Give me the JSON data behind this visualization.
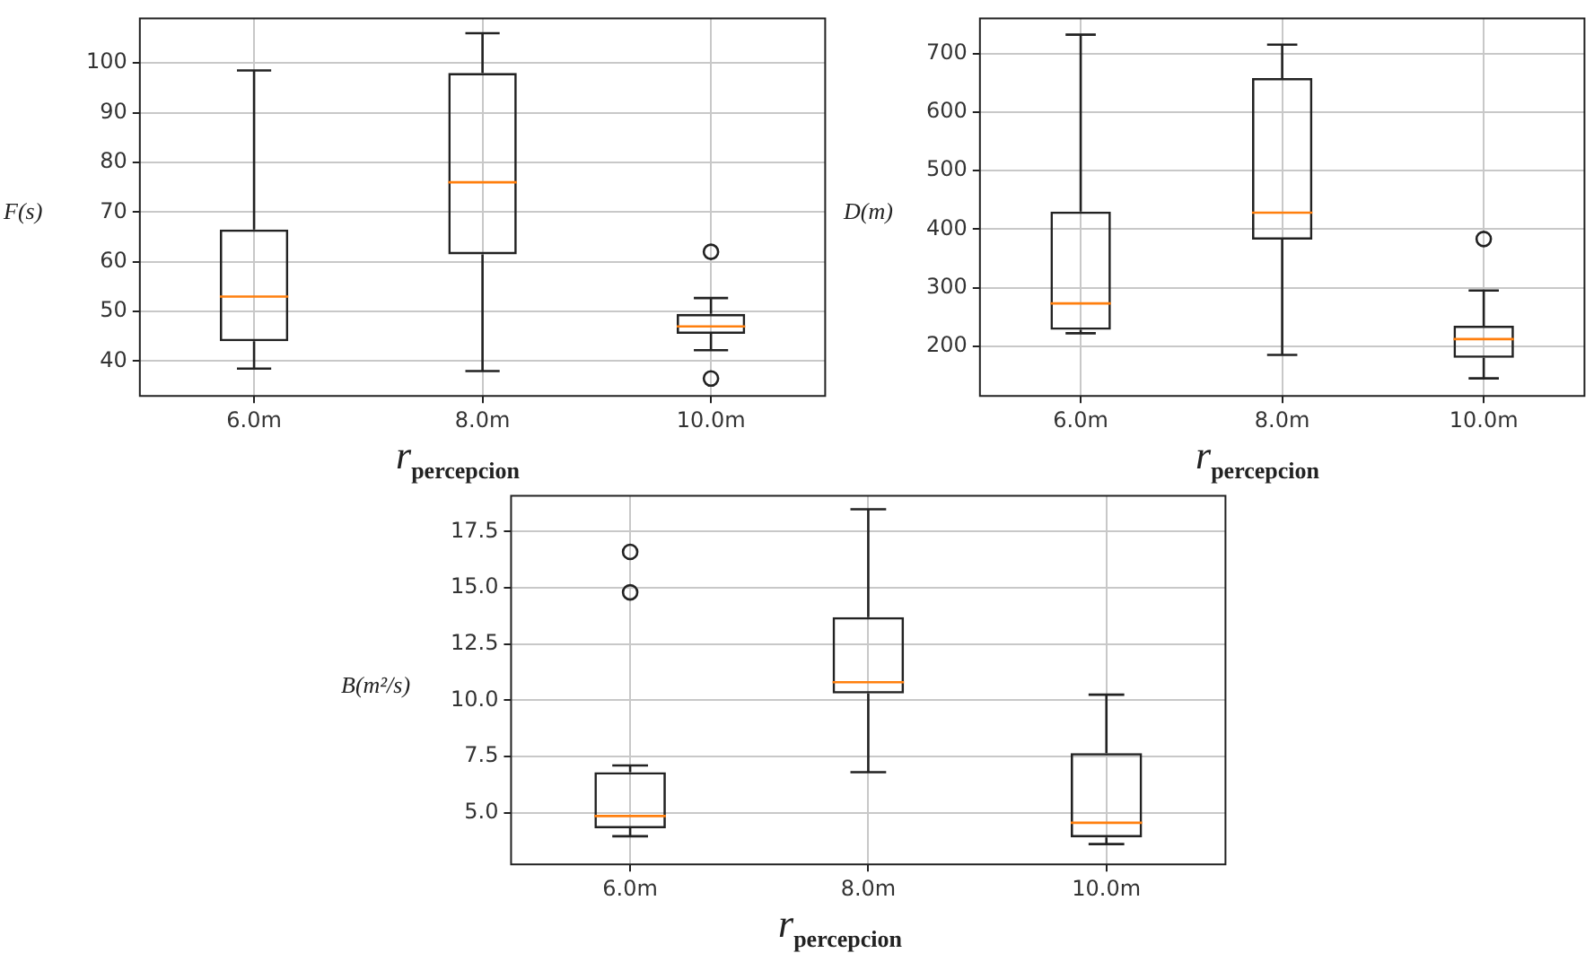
{
  "chart_data": [
    {
      "type": "box",
      "categories": [
        "6.0m",
        "8.0m",
        "10.0m"
      ],
      "xlabel": "r$_{percepcion}$",
      "ylabel": "F(s)",
      "ylim": [
        33,
        109
      ],
      "yticks": [
        40,
        50,
        60,
        70,
        80,
        90,
        100
      ],
      "grid": true,
      "boxes": [
        {
          "low": 38.5,
          "q1": 44,
          "median": 53,
          "q3": 66.5,
          "high": 98.5
        },
        {
          "low": 38,
          "q1": 61.5,
          "median": 76,
          "q3": 98,
          "high": 106
        },
        {
          "low": 42.2,
          "q1": 45.5,
          "median": 47,
          "q3": 49.5,
          "high": 52.7,
          "outliers": [
            62,
            36.5
          ]
        }
      ]
    },
    {
      "type": "box",
      "categories": [
        "6.0m",
        "8.0m",
        "10.0m"
      ],
      "xlabel": "r$_{percepcion}$",
      "ylabel": "D(m)",
      "ylim": [
        115,
        760
      ],
      "yticks": [
        200,
        300,
        400,
        500,
        600,
        700
      ],
      "grid": true,
      "boxes": [
        {
          "low": 222,
          "q1": 228,
          "median": 273,
          "q3": 430,
          "high": 732
        },
        {
          "low": 185,
          "q1": 382,
          "median": 428,
          "q3": 658,
          "high": 715
        },
        {
          "low": 145,
          "q1": 180,
          "median": 212,
          "q3": 235,
          "high": 295,
          "outliers": [
            383
          ]
        }
      ]
    },
    {
      "type": "box",
      "categories": [
        "6.0m",
        "8.0m",
        "10.0m"
      ],
      "xlabel": "r$_{percepcion}$",
      "ylabel": "B(m²/s)",
      "ylim": [
        2.7,
        19.1
      ],
      "yticks": [
        {
          "value": 5,
          "label": "5.0"
        },
        7.5,
        {
          "value": 10,
          "label": "10.0"
        },
        12.5,
        {
          "value": 15,
          "label": "15.0"
        },
        17.5
      ],
      "grid": true,
      "boxes": [
        {
          "low": 3.95,
          "q1": 4.3,
          "median": 4.85,
          "q3": 6.8,
          "high": 7.1,
          "outliers": [
            16.6,
            14.8
          ]
        },
        {
          "low": 6.8,
          "q1": 10.3,
          "median": 10.8,
          "q3": 13.7,
          "high": 18.5
        },
        {
          "low": 3.6,
          "q1": 3.9,
          "median": 4.55,
          "q3": 7.65,
          "high": 10.25
        }
      ]
    }
  ]
}
